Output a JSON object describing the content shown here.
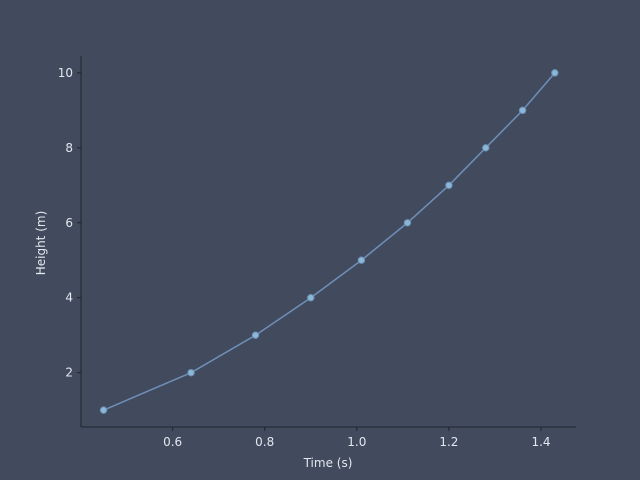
{
  "chart_data": {
    "type": "line",
    "title": "",
    "xlabel": "Time (s)",
    "ylabel": "Height (m)",
    "xlim": [
      0.401,
      1.476
    ],
    "ylim": [
      0.55,
      10.45
    ],
    "x_ticks": [
      0.6,
      0.8,
      1.0,
      1.2,
      1.4
    ],
    "x_tick_labels": [
      "0.6",
      "0.8",
      "1.0",
      "1.2",
      "1.4"
    ],
    "y_ticks": [
      2,
      4,
      6,
      8,
      10
    ],
    "y_tick_labels": [
      "2",
      "4",
      "6",
      "8",
      "10"
    ],
    "grid": false,
    "series": [
      {
        "marker": "circle",
        "points": [
          {
            "x": 0.45,
            "y": 1
          },
          {
            "x": 0.64,
            "y": 2
          },
          {
            "x": 0.78,
            "y": 3
          },
          {
            "x": 0.9,
            "y": 4
          },
          {
            "x": 1.01,
            "y": 5
          },
          {
            "x": 1.11,
            "y": 6
          },
          {
            "x": 1.2,
            "y": 7
          },
          {
            "x": 1.28,
            "y": 8
          },
          {
            "x": 1.36,
            "y": 9
          },
          {
            "x": 1.43,
            "y": 10
          }
        ]
      }
    ],
    "colors": {
      "background": "#424b5e",
      "axis": "#1f242c",
      "text": "#e3e7ee",
      "line": "#6f8fb8",
      "marker_fill": "#8ab8d6",
      "marker_edge": "#6f8fb8"
    }
  }
}
